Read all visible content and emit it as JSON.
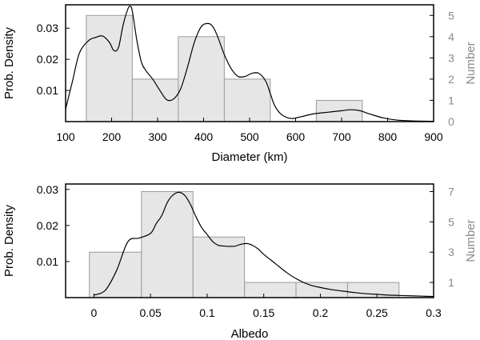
{
  "chart_data": [
    {
      "type": "bar",
      "xlabel": "Diameter (km)",
      "ylabel": "Prob. Density",
      "y2label": "Number",
      "xlim": [
        100,
        900
      ],
      "ylim": [
        0,
        0.0375
      ],
      "y2lim": [
        0,
        5.5
      ],
      "xticks": [
        100,
        200,
        300,
        400,
        500,
        600,
        700,
        800,
        900
      ],
      "xticklabels": [
        "100",
        "200",
        "300",
        "400",
        "500",
        "600",
        "700",
        "800",
        "900"
      ],
      "yticks": [
        0.01,
        0.02,
        0.03
      ],
      "yticklabels": [
        "0.01",
        "0.02",
        "0.03"
      ],
      "y2ticks": [
        0,
        1,
        2,
        3,
        4,
        5
      ],
      "y2ticklabels": [
        "0",
        "1",
        "2",
        "3",
        "4",
        "5"
      ],
      "histogram": {
        "bin_edges": [
          145,
          245,
          345,
          445,
          545,
          645,
          745
        ],
        "counts": [
          5,
          2,
          4,
          2,
          0,
          1
        ]
      },
      "density_curve": {
        "x": [
          100,
          115,
          130,
          150,
          165,
          180,
          195,
          205,
          215,
          225,
          235,
          240,
          245,
          255,
          265,
          275,
          290,
          305,
          320,
          335,
          350,
          365,
          380,
          395,
          410,
          420,
          430,
          445,
          460,
          475,
          490,
          505,
          520,
          535,
          545,
          555,
          570,
          590,
          610,
          640,
          670,
          700,
          720,
          740,
          760,
          790,
          820,
          860,
          900
        ],
        "y": [
          0.004,
          0.013,
          0.022,
          0.026,
          0.027,
          0.0275,
          0.0255,
          0.0228,
          0.0238,
          0.031,
          0.036,
          0.037,
          0.0355,
          0.026,
          0.019,
          0.0163,
          0.0135,
          0.01,
          0.007,
          0.0073,
          0.0105,
          0.0175,
          0.0255,
          0.0305,
          0.0315,
          0.0305,
          0.0275,
          0.0215,
          0.017,
          0.0145,
          0.0145,
          0.0155,
          0.0155,
          0.013,
          0.009,
          0.005,
          0.0022,
          0.001,
          0.0015,
          0.0025,
          0.003,
          0.0035,
          0.0038,
          0.0035,
          0.0025,
          0.0012,
          0.0005,
          0.0002,
          0.0001
        ]
      },
      "grid": false
    },
    {
      "type": "bar",
      "xlabel": "Albedo",
      "ylabel": "Prob. Density",
      "y2label": "Number",
      "xlim": [
        -0.025,
        0.3
      ],
      "ylim": [
        0,
        0.0315
      ],
      "y2lim": [
        0,
        7.5
      ],
      "xticks": [
        0,
        0.05,
        0.1,
        0.15,
        0.2,
        0.25,
        0.3
      ],
      "xticklabels": [
        "0",
        "0.05",
        "0.1",
        "0.15",
        "0.2",
        "0.25",
        "0.3"
      ],
      "yticks": [
        0.01,
        0.02,
        0.03
      ],
      "yticklabels": [
        "0.01",
        "0.02",
        "0.03"
      ],
      "y2ticks": [
        1,
        3,
        5,
        7
      ],
      "y2ticklabels": [
        "1",
        "3",
        "5",
        "7"
      ],
      "histogram": {
        "bin_edges": [
          -0.004,
          0.042,
          0.0875,
          0.133,
          0.1785,
          0.224,
          0.2695
        ],
        "counts": [
          3,
          7,
          4,
          1,
          1,
          1
        ]
      },
      "density_curve": {
        "x": [
          0,
          0.01,
          0.02,
          0.03,
          0.04,
          0.05,
          0.055,
          0.06,
          0.065,
          0.07,
          0.075,
          0.08,
          0.085,
          0.09,
          0.095,
          0.1,
          0.105,
          0.11,
          0.115,
          0.12,
          0.125,
          0.13,
          0.135,
          0.14,
          0.145,
          0.15,
          0.16,
          0.17,
          0.18,
          0.19,
          0.2,
          0.21,
          0.22,
          0.23,
          0.24,
          0.25,
          0.26,
          0.27,
          0.28,
          0.29,
          0.3
        ],
        "y": [
          0.0007,
          0.002,
          0.0075,
          0.0155,
          0.0165,
          0.0178,
          0.0205,
          0.0228,
          0.0265,
          0.0285,
          0.0292,
          0.0284,
          0.026,
          0.0225,
          0.0195,
          0.0175,
          0.0155,
          0.0145,
          0.0143,
          0.0142,
          0.0143,
          0.0148,
          0.015,
          0.0145,
          0.0135,
          0.012,
          0.0095,
          0.007,
          0.005,
          0.0036,
          0.0028,
          0.0022,
          0.0018,
          0.0014,
          0.0011,
          0.0009,
          0.0007,
          0.0006,
          0.0005,
          0.0004,
          0.0003
        ]
      },
      "grid": false
    }
  ]
}
